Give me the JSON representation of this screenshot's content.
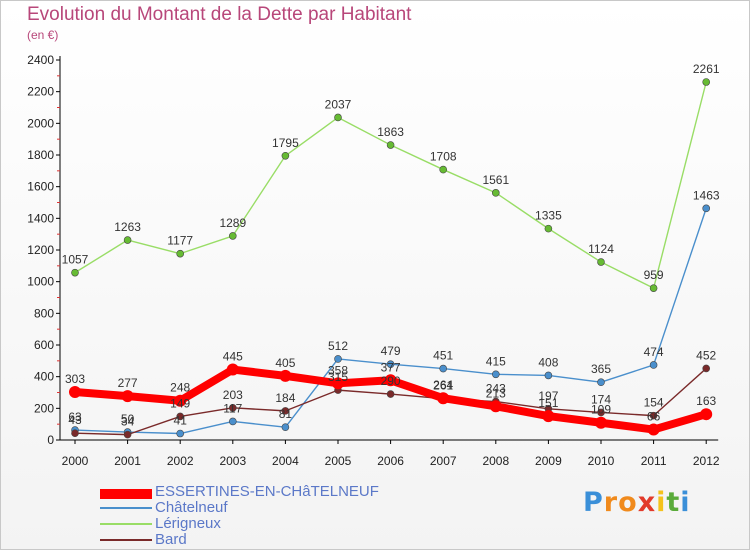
{
  "title": "Evolution du Montant de la Dette par Habitant",
  "unit_label": "(en €)",
  "logo": {
    "letters": [
      "P",
      "r",
      "o",
      "x",
      "i",
      "t",
      "i"
    ],
    "colors": [
      "#3a8fd8",
      "#f08a1c",
      "#f08a1c",
      "#e23a2a",
      "#f4c21c",
      "#5aab3a",
      "#3a8fd8"
    ]
  },
  "chart_data": {
    "type": "line",
    "categories": [
      "2000",
      "2001",
      "2002",
      "2003",
      "2004",
      "2005",
      "2006",
      "2007",
      "2008",
      "2009",
      "2010",
      "2011",
      "2012"
    ],
    "ylim": [
      0,
      2400
    ],
    "yticks": [
      0,
      200,
      400,
      600,
      800,
      1000,
      1200,
      1400,
      1600,
      1800,
      2000,
      2200,
      2400
    ],
    "grid": false,
    "legend_position": "bottom-left",
    "series": [
      {
        "name": "ESSERTINES-EN-CHâTELNEUF",
        "color": "#ff0000",
        "values": [
          303,
          277,
          248,
          445,
          405,
          358,
          377,
          264,
          213,
          151,
          109,
          66,
          163
        ],
        "labels": [
          "303",
          "277",
          "248",
          "445",
          "405",
          "358",
          "377",
          "264",
          "213",
          "151",
          "109",
          "66",
          "163"
        ]
      },
      {
        "name": "Châtelneuf",
        "color": "#4a8fcc",
        "point_color": "#4a8fcc",
        "values": [
          63,
          50,
          41,
          117,
          81,
          512,
          479,
          451,
          415,
          408,
          365,
          474,
          1463
        ],
        "labels": [
          "63",
          "50",
          "41",
          "117",
          "81",
          "512",
          "479",
          "451",
          "415",
          "408",
          "365",
          "474",
          "1463"
        ]
      },
      {
        "name": "Lérigneux",
        "color": "#99dd66",
        "point_color": "#66bb33",
        "values": [
          1057,
          1263,
          1177,
          1289,
          1795,
          2037,
          1863,
          1708,
          1561,
          1335,
          1124,
          959,
          2261
        ],
        "labels": [
          "1057",
          "1263",
          "1177",
          "1289",
          "1795",
          "2037",
          "1863",
          "1708",
          "1561",
          "1335",
          "1124",
          "959",
          "2261"
        ]
      },
      {
        "name": "Bard",
        "color": "#7a2a2a",
        "point_color": "#7a2a2a",
        "values": [
          43,
          34,
          149,
          203,
          184,
          315,
          290,
          261,
          243,
          197,
          174,
          154,
          452
        ],
        "labels": [
          "43",
          "34",
          "149",
          "203",
          "184",
          "315",
          "290",
          "261",
          "243",
          "197",
          "174",
          "154",
          "452"
        ]
      }
    ]
  }
}
